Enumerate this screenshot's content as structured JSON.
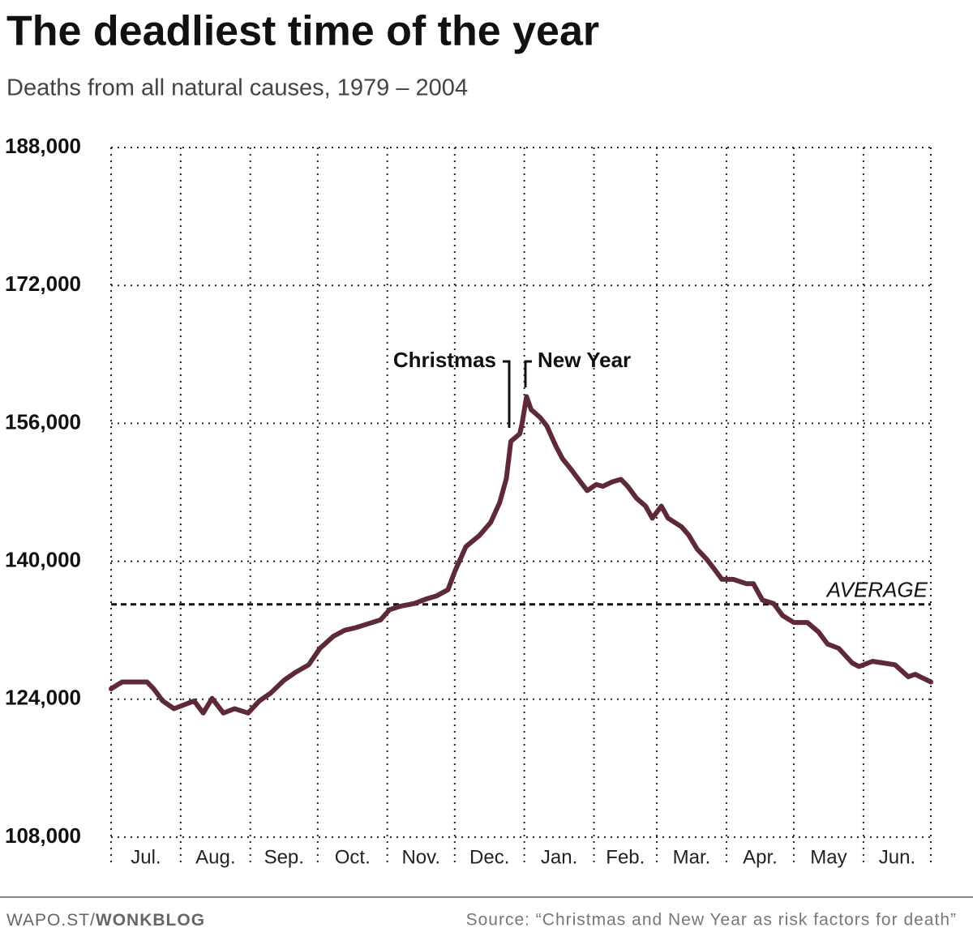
{
  "chart_data": {
    "type": "line",
    "title": "The deadliest time of the year",
    "subtitle": "Deaths from all natural causes, 1979 – 2004",
    "categories": [
      "Jul.",
      "Aug.",
      "Sep.",
      "Oct.",
      "Nov.",
      "Dec.",
      "Jan.",
      "Feb.",
      "Mar.",
      "Apr.",
      "May",
      "Jun."
    ],
    "x": [
      0,
      3,
      5,
      16,
      19,
      23,
      28,
      34,
      37,
      41,
      45,
      50,
      55,
      61,
      66,
      71,
      77,
      82,
      88,
      93,
      99,
      104,
      109,
      115,
      120,
      124,
      129,
      135,
      140,
      145,
      150,
      153,
      158,
      164,
      169,
      173,
      176,
      178,
      182,
      183,
      185,
      187,
      191,
      194,
      198,
      201,
      205,
      209,
      212,
      216,
      219,
      223,
      227,
      230,
      234,
      238,
      241,
      245,
      248,
      254,
      257,
      261,
      265,
      268,
      272,
      277,
      283,
      286,
      290,
      295,
      299,
      304,
      310,
      315,
      319,
      324,
      330,
      333,
      339,
      344,
      349,
      355,
      358,
      365
    ],
    "values": [
      125200,
      125700,
      126000,
      126000,
      125200,
      123800,
      122900,
      123500,
      123800,
      122400,
      124100,
      122400,
      122900,
      122400,
      123800,
      124700,
      126200,
      127100,
      128000,
      129900,
      131300,
      132000,
      132300,
      132800,
      133200,
      134400,
      134800,
      135100,
      135600,
      136000,
      136700,
      138800,
      141700,
      143000,
      144500,
      146800,
      149600,
      153900,
      154800,
      156000,
      159100,
      157600,
      156700,
      155700,
      153400,
      151900,
      150600,
      149200,
      148200,
      148900,
      148700,
      149200,
      149500,
      148700,
      147300,
      146400,
      145000,
      146400,
      145000,
      144000,
      143100,
      141400,
      140300,
      139300,
      137900,
      137900,
      137400,
      137400,
      135500,
      135100,
      133700,
      132900,
      132900,
      131800,
      130400,
      129900,
      128200,
      127800,
      128400,
      128200,
      128000,
      126600,
      126900,
      126000
    ],
    "color": "#5e2a36",
    "xlim": [
      0,
      365
    ],
    "xticks": [
      0,
      31,
      62,
      92,
      123,
      153,
      184,
      215,
      243,
      274,
      304,
      335,
      365
    ],
    "ylim": [
      108000,
      188000
    ],
    "yticks": [
      {
        "value": 108000,
        "label": "108,000"
      },
      {
        "value": 124000,
        "label": "124,000"
      },
      {
        "value": 140000,
        "label": "140,000"
      },
      {
        "value": 156000,
        "label": "156,000"
      },
      {
        "value": 172000,
        "label": "172,000"
      },
      {
        "value": 188000,
        "label": "188,000"
      }
    ],
    "grid": true,
    "average": {
      "value": 135000,
      "label": "AVERAGE"
    },
    "annotations": [
      "Christmas",
      "New Year"
    ],
    "footer": {
      "site": "WAPO.ST/",
      "blog": "WONKBLOG",
      "source": "Source: “Christmas and New Year as risk factors for death”"
    }
  }
}
